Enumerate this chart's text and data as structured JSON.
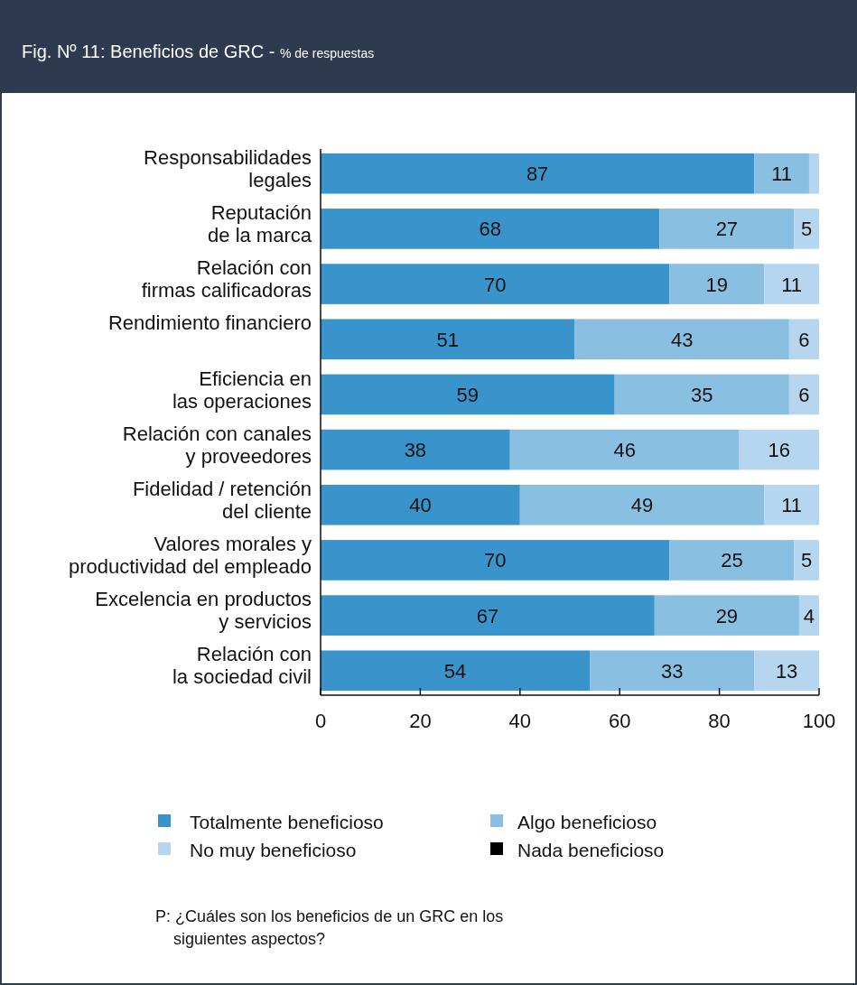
{
  "chart_data": {
    "type": "bar",
    "orientation": "horizontal",
    "stacked": true,
    "title": "Fig. Nº 11: Beneficios de GRC - ",
    "subtitle": "% de respuestas",
    "categories": [
      "Responsabilidades\nlegales",
      "Reputación\nde la marca",
      "Relación con\nfirmas calificadoras",
      "Rendimiento financiero",
      "Eficiencia en\nlas operaciones",
      "Relación con canales\ny proveedores",
      "Fidelidad / retención\ndel cliente",
      "Valores morales y\nproductividad del empleado",
      "Excelencia en productos\ny servicios",
      "Relación con\nla sociedad civil"
    ],
    "series": [
      {
        "name": "Totalmente beneficioso",
        "color": "#3a94cc",
        "values": [
          87,
          68,
          70,
          51,
          59,
          38,
          40,
          70,
          67,
          54
        ],
        "value_labels": [
          "87",
          "68",
          "70",
          "51",
          "59",
          "38",
          "40",
          "70",
          "67",
          "54"
        ]
      },
      {
        "name": "Algo beneficioso",
        "color": "#89bfe0",
        "values": [
          11,
          27,
          19,
          43,
          35,
          46,
          49,
          25,
          29,
          33
        ],
        "value_labels": [
          "11",
          "27",
          "19",
          "43",
          "35",
          "46",
          "49",
          "25",
          "29",
          "33"
        ]
      },
      {
        "name": "No muy beneficioso",
        "color": "#b5d6ee",
        "values": [
          2,
          5,
          11,
          6,
          6,
          16,
          11,
          5,
          4,
          13
        ],
        "value_labels": [
          null,
          "5",
          "11",
          "6",
          "6",
          "16",
          "11",
          "5",
          "4",
          "13"
        ]
      },
      {
        "name": "Nada beneficioso",
        "color": "#000000",
        "values": [
          0,
          0,
          0,
          0,
          0,
          0,
          0,
          0,
          0,
          0
        ]
      }
    ],
    "xlim": [
      0,
      100
    ],
    "xticks": [
      0,
      20,
      40,
      60,
      80,
      100
    ],
    "legend": "bottom",
    "grid": false,
    "annotations": [
      "P: ¿Cuáles son los beneficios de un GRC en los\nsiguientes aspectos?"
    ]
  }
}
